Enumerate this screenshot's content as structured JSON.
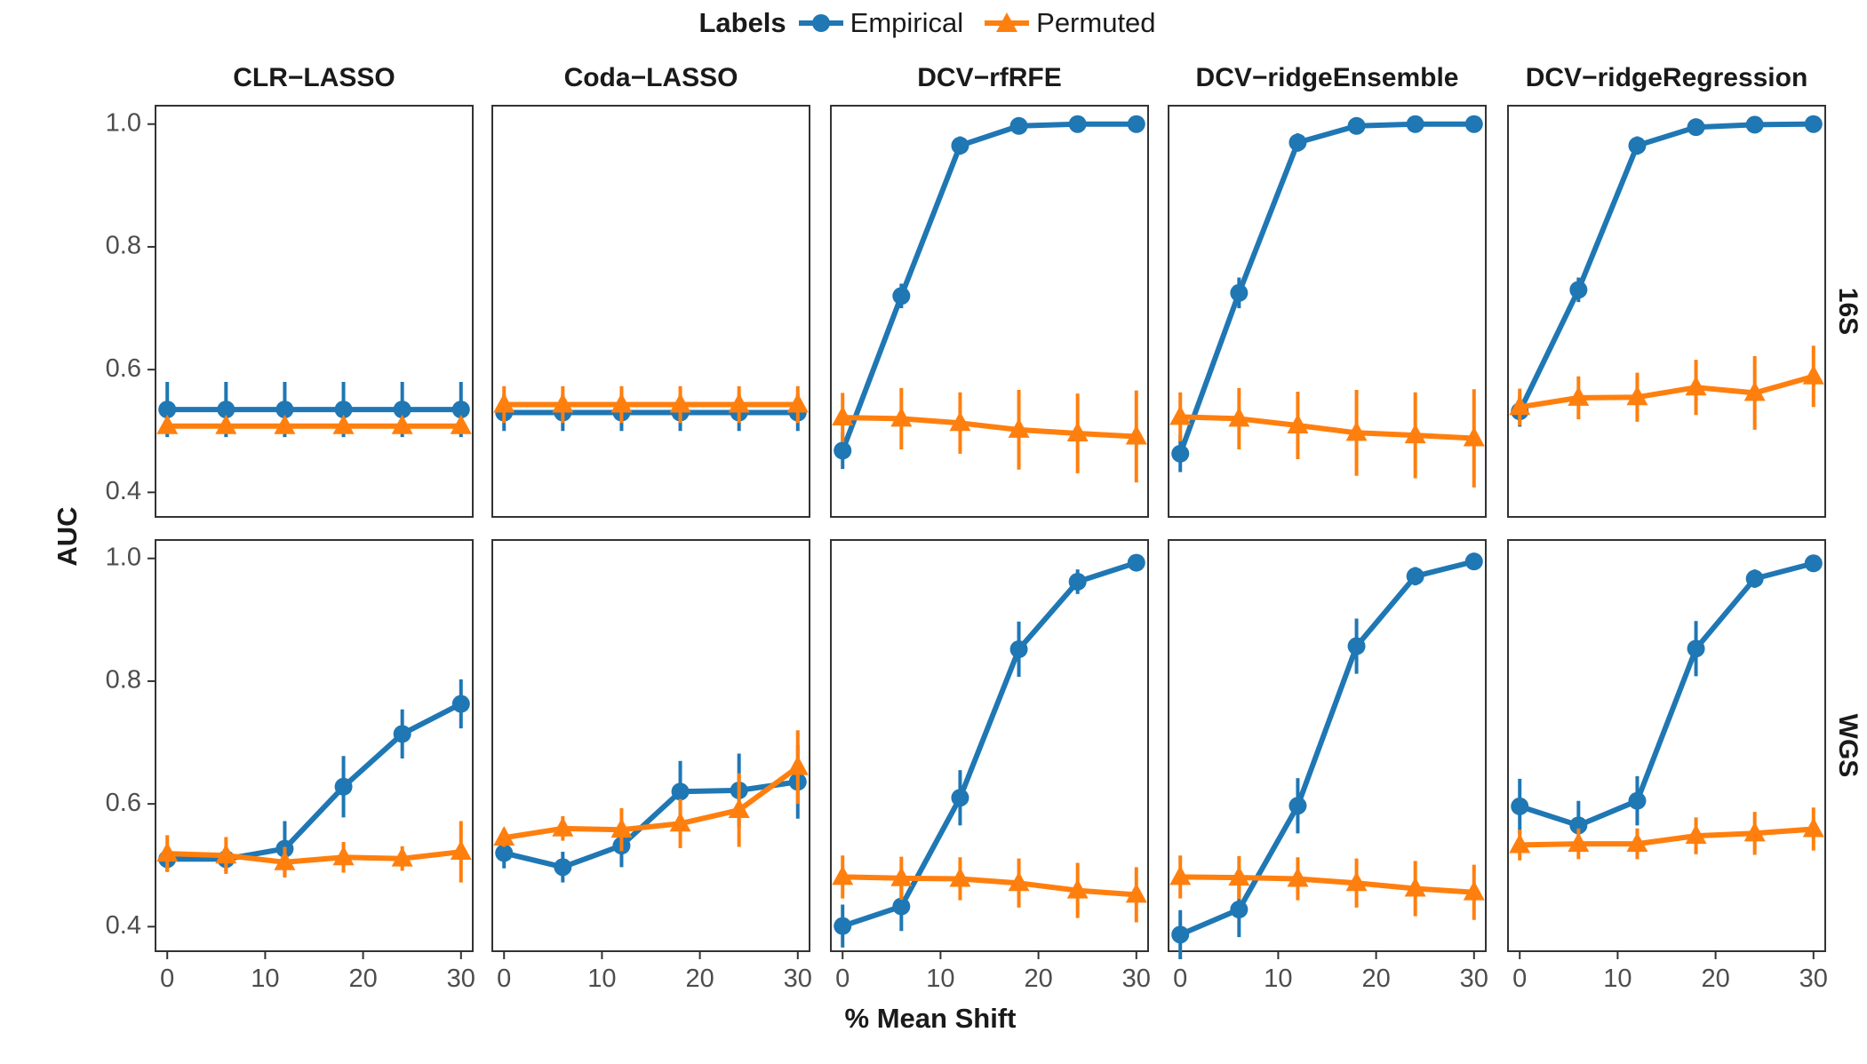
{
  "legend": {
    "title": "Labels",
    "entries": [
      {
        "name": "Empirical",
        "color": "#1F77B4",
        "shape": "circle"
      },
      {
        "name": "Permuted",
        "color": "#FF7F0E",
        "shape": "triangle"
      }
    ]
  },
  "chart_data": {
    "type": "line",
    "xlabel": "% Mean Shift",
    "ylabel": "AUC",
    "x": [
      0,
      6,
      12,
      18,
      24,
      30
    ],
    "xticks": [
      0,
      10,
      20,
      30
    ],
    "xlim": [
      -1.2,
      31.2
    ],
    "yticks": [
      0.4,
      0.6,
      0.8,
      1.0
    ],
    "ytick_labels": [
      "0.4",
      "0.6",
      "0.8",
      "1.0"
    ],
    "ylim": [
      0.36,
      1.03
    ],
    "columns": [
      "CLR−LASSO",
      "Coda−LASSO",
      "DCV−rfRFE",
      "DCV−ridgeEnsemble",
      "DCV−ridgeRegression"
    ],
    "rows": [
      "16S",
      "WGS"
    ],
    "panels": [
      {
        "row": "16S",
        "column": "CLR−LASSO",
        "series": [
          {
            "name": "Empirical",
            "values": [
              0.535,
              0.535,
              0.535,
              0.535,
              0.535,
              0.535
            ],
            "err": [
              0.045,
              0.045,
              0.045,
              0.045,
              0.045,
              0.045
            ]
          },
          {
            "name": "Permuted",
            "values": [
              0.508,
              0.508,
              0.508,
              0.508,
              0.508,
              0.508
            ],
            "err": [
              0.012,
              0.012,
              0.012,
              0.012,
              0.012,
              0.012
            ]
          }
        ]
      },
      {
        "row": "16S",
        "column": "Coda−LASSO",
        "series": [
          {
            "name": "Empirical",
            "values": [
              0.53,
              0.53,
              0.53,
              0.53,
              0.53,
              0.53
            ],
            "err": [
              0.03,
              0.03,
              0.03,
              0.03,
              0.03,
              0.03
            ]
          },
          {
            "name": "Permuted",
            "values": [
              0.543,
              0.543,
              0.543,
              0.543,
              0.543,
              0.543
            ],
            "err": [
              0.03,
              0.03,
              0.03,
              0.03,
              0.03,
              0.03
            ]
          }
        ]
      },
      {
        "row": "16S",
        "column": "DCV−rfRFE",
        "series": [
          {
            "name": "Empirical",
            "values": [
              0.468,
              0.72,
              0.965,
              0.997,
              1.0,
              1.0
            ],
            "err": [
              0.03,
              0.02,
              0.015,
              0.005,
              0.003,
              0.003
            ]
          },
          {
            "name": "Permuted",
            "values": [
              0.522,
              0.52,
              0.513,
              0.502,
              0.496,
              0.491
            ],
            "err": [
              0.04,
              0.05,
              0.05,
              0.065,
              0.065,
              0.075
            ]
          }
        ]
      },
      {
        "row": "16S",
        "column": "DCV−ridgeEnsemble",
        "series": [
          {
            "name": "Empirical",
            "values": [
              0.463,
              0.725,
              0.97,
              0.997,
              1.0,
              1.0
            ],
            "err": [
              0.03,
              0.025,
              0.015,
              0.005,
              0.003,
              0.003
            ]
          },
          {
            "name": "Permuted",
            "values": [
              0.523,
              0.52,
              0.509,
              0.497,
              0.493,
              0.488
            ],
            "err": [
              0.04,
              0.05,
              0.055,
              0.07,
              0.07,
              0.08
            ]
          }
        ]
      },
      {
        "row": "16S",
        "column": "DCV−ridgeRegression",
        "series": [
          {
            "name": "Empirical",
            "values": [
              0.532,
              0.73,
              0.965,
              0.995,
              0.999,
              1.0
            ],
            "err": [
              0.025,
              0.02,
              0.015,
              0.005,
              0.003,
              0.003
            ]
          },
          {
            "name": "Permuted",
            "values": [
              0.539,
              0.554,
              0.555,
              0.571,
              0.562,
              0.589
            ],
            "err": [
              0.03,
              0.035,
              0.04,
              0.045,
              0.06,
              0.05
            ]
          }
        ]
      },
      {
        "row": "WGS",
        "column": "CLR−LASSO",
        "series": [
          {
            "name": "Empirical",
            "values": [
              0.51,
              0.51,
              0.527,
              0.628,
              0.714,
              0.763
            ],
            "err": [
              0.02,
              0.02,
              0.045,
              0.05,
              0.04,
              0.04
            ]
          },
          {
            "name": "Permuted",
            "values": [
              0.519,
              0.516,
              0.505,
              0.513,
              0.511,
              0.522
            ],
            "err": [
              0.03,
              0.03,
              0.025,
              0.025,
              0.02,
              0.05
            ]
          }
        ]
      },
      {
        "row": "WGS",
        "column": "Coda−LASSO",
        "series": [
          {
            "name": "Empirical",
            "values": [
              0.52,
              0.497,
              0.532,
              0.62,
              0.622,
              0.636
            ],
            "err": [
              0.025,
              0.025,
              0.035,
              0.05,
              0.06,
              0.06
            ]
          },
          {
            "name": "Permuted",
            "values": [
              0.545,
              0.56,
              0.558,
              0.568,
              0.59,
              0.66
            ],
            "err": [
              0.015,
              0.02,
              0.035,
              0.04,
              0.06,
              0.06
            ]
          }
        ]
      },
      {
        "row": "WGS",
        "column": "DCV−rfRFE",
        "series": [
          {
            "name": "Empirical",
            "values": [
              0.401,
              0.433,
              0.61,
              0.852,
              0.962,
              0.993
            ],
            "err": [
              0.035,
              0.04,
              0.045,
              0.045,
              0.02,
              0.01
            ]
          },
          {
            "name": "Permuted",
            "values": [
              0.481,
              0.479,
              0.478,
              0.471,
              0.459,
              0.452
            ],
            "err": [
              0.035,
              0.035,
              0.035,
              0.04,
              0.045,
              0.045
            ]
          }
        ]
      },
      {
        "row": "WGS",
        "column": "DCV−ridgeEnsemble",
        "series": [
          {
            "name": "Empirical",
            "values": [
              0.387,
              0.428,
              0.597,
              0.857,
              0.971,
              0.995
            ],
            "err": [
              0.04,
              0.045,
              0.045,
              0.045,
              0.015,
              0.008
            ]
          },
          {
            "name": "Permuted",
            "values": [
              0.481,
              0.48,
              0.478,
              0.471,
              0.462,
              0.456
            ],
            "err": [
              0.035,
              0.035,
              0.035,
              0.04,
              0.045,
              0.045
            ]
          }
        ]
      },
      {
        "row": "WGS",
        "column": "DCV−ridgeRegression",
        "series": [
          {
            "name": "Empirical",
            "values": [
              0.596,
              0.565,
              0.605,
              0.853,
              0.967,
              0.992
            ],
            "err": [
              0.045,
              0.04,
              0.04,
              0.045,
              0.015,
              0.008
            ]
          },
          {
            "name": "Permuted",
            "values": [
              0.533,
              0.535,
              0.535,
              0.548,
              0.552,
              0.559
            ],
            "err": [
              0.025,
              0.025,
              0.025,
              0.03,
              0.035,
              0.035
            ]
          }
        ]
      }
    ]
  }
}
